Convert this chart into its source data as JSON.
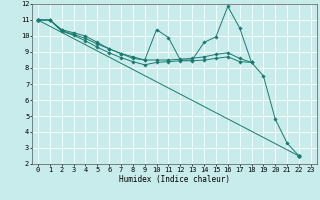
{
  "xlabel": "Humidex (Indice chaleur)",
  "bg_color": "#c8ecec",
  "line_color": "#1a7a6e",
  "grid_color": "#ffffff",
  "xlim": [
    -0.5,
    23.5
  ],
  "ylim": [
    2,
    12
  ],
  "xticks": [
    0,
    1,
    2,
    3,
    4,
    5,
    6,
    7,
    8,
    9,
    10,
    11,
    12,
    13,
    14,
    15,
    16,
    17,
    18,
    19,
    20,
    21,
    22,
    23
  ],
  "yticks": [
    2,
    3,
    4,
    5,
    6,
    7,
    8,
    9,
    10,
    11,
    12
  ],
  "series": [
    {
      "x": [
        0,
        1,
        2,
        3,
        4,
        5,
        6,
        7,
        8,
        9,
        10,
        11,
        12,
        13,
        14,
        15,
        16,
        17,
        18,
        19,
        20,
        21,
        22
      ],
      "y": [
        11.0,
        11.0,
        10.4,
        10.2,
        10.0,
        9.6,
        9.2,
        8.9,
        8.7,
        8.5,
        10.4,
        9.9,
        8.5,
        8.5,
        9.6,
        9.95,
        11.85,
        10.5,
        8.35,
        7.5,
        4.8,
        3.3,
        2.5
      ]
    },
    {
      "x": [
        0,
        1,
        2,
        3,
        4,
        5,
        6,
        7,
        8,
        9,
        10,
        11,
        12,
        13,
        14,
        15,
        16,
        17,
        18
      ],
      "y": [
        11.0,
        11.0,
        10.35,
        10.1,
        9.85,
        9.5,
        9.2,
        8.9,
        8.6,
        8.5,
        8.5,
        8.5,
        8.55,
        8.6,
        8.7,
        8.85,
        8.95,
        8.6,
        8.35
      ]
    },
    {
      "x": [
        0,
        1,
        2,
        3,
        4,
        5,
        6,
        7,
        8,
        9,
        10,
        11,
        12,
        13,
        14,
        15,
        16,
        17,
        18
      ],
      "y": [
        11.0,
        11.0,
        10.3,
        10.05,
        9.7,
        9.3,
        8.95,
        8.65,
        8.4,
        8.2,
        8.35,
        8.4,
        8.45,
        8.45,
        8.5,
        8.6,
        8.7,
        8.4,
        8.35
      ]
    },
    {
      "x": [
        0,
        22
      ],
      "y": [
        11.0,
        2.5
      ]
    }
  ]
}
